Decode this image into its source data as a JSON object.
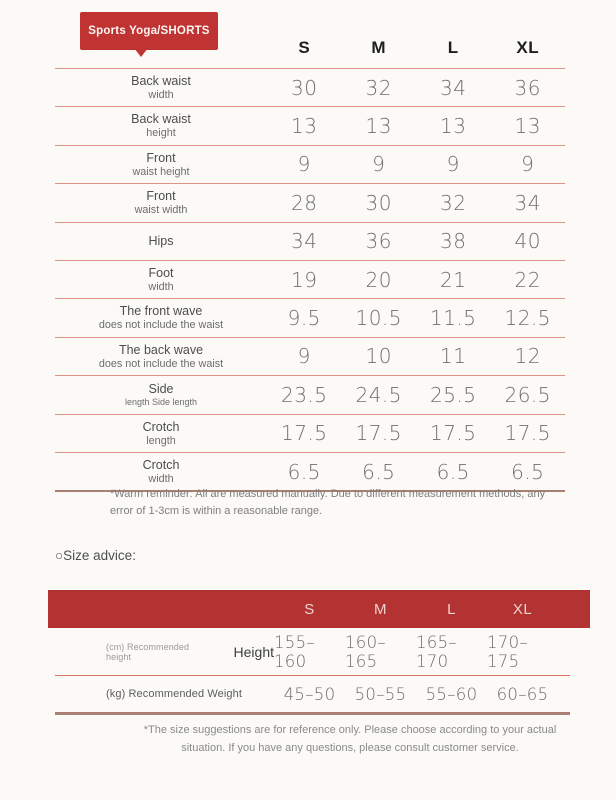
{
  "badge": {
    "label": "Sports Yoga/SHORTS"
  },
  "size_table": {
    "columns": [
      "S",
      "M",
      "L",
      "XL"
    ],
    "rows": [
      {
        "label": "Back waist",
        "sublabel": "width",
        "values": [
          "30",
          "32",
          "34",
          "36"
        ]
      },
      {
        "label": "Back waist",
        "sublabel": "height",
        "values": [
          "13",
          "13",
          "13",
          "13"
        ]
      },
      {
        "label": "Front",
        "sublabel": "waist height",
        "values": [
          "9",
          "9",
          "9",
          "9"
        ]
      },
      {
        "label": "Front",
        "sublabel": "waist width",
        "values": [
          "28",
          "30",
          "32",
          "34"
        ]
      },
      {
        "label": "Hips",
        "sublabel": "",
        "values": [
          "34",
          "36",
          "38",
          "40"
        ]
      },
      {
        "label": "Foot",
        "sublabel": "width",
        "values": [
          "19",
          "20",
          "21",
          "22"
        ]
      },
      {
        "label": "The front wave",
        "sublabel": "does not include the waist",
        "values": [
          "9.5",
          "10.5",
          "11.5",
          "12.5"
        ]
      },
      {
        "label": "The back wave",
        "sublabel": "does not include the waist",
        "values": [
          "9",
          "10",
          "11",
          "12"
        ]
      },
      {
        "label": "Side",
        "sublabel": "length Side length",
        "values": [
          "23.5",
          "24.5",
          "25.5",
          "26.5"
        ]
      },
      {
        "label": "Crotch",
        "sublabel": "length",
        "values": [
          "17.5",
          "17.5",
          "17.5",
          "17.5"
        ]
      },
      {
        "label": "Crotch",
        "sublabel": "width",
        "values": [
          "6.5",
          "6.5",
          "6.5",
          "6.5"
        ]
      }
    ],
    "note": "*Warm reminder: All are measured manually. Due to different measurement methods, any error of 1-3cm is within a reasonable range."
  },
  "size_advice": {
    "heading": "○Size advice:",
    "columns": [
      "S",
      "M",
      "L",
      "XL"
    ],
    "rows": [
      {
        "unit": "(cm) Recommended height",
        "label": "Height",
        "values": [
          "155–160",
          "160–165",
          "165–170",
          "170–175"
        ]
      },
      {
        "unit": "(kg) Recommended Weight",
        "label": "",
        "values": [
          "45–50",
          "50–55",
          "55–60",
          "60–65"
        ]
      }
    ],
    "note": "*The size suggestions are for reference only. Please choose according to your actual situation. If you have any questions, please consult customer service."
  },
  "colors": {
    "badge_red": "#bf3433",
    "bar_red": "#b23332",
    "thin_line_salmon": "#de928a",
    "thick_line_brown": "#ab7f72",
    "advice_line_red": "#dd6e62"
  }
}
